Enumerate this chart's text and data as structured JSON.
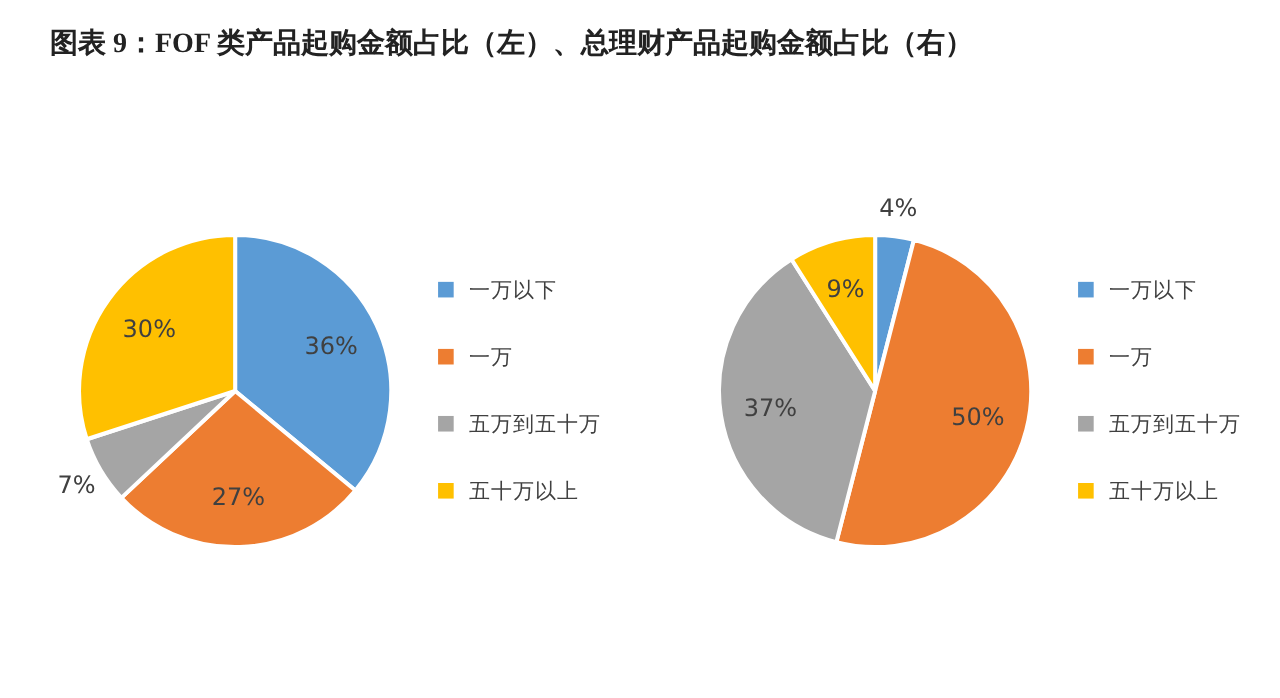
{
  "chart_data": [
    {
      "type": "pie",
      "title": "图表 9：FOF 类产品起购金额占比（左）、总理财产品起购金额占比（右）",
      "categories": [
        "一万以下",
        "一万",
        "五万到五十万",
        "五十万以上"
      ],
      "values": [
        36,
        27,
        7,
        30
      ],
      "colors": [
        "#5b9bd5",
        "#ed7d31",
        "#a5a5a5",
        "#ffc000"
      ],
      "value_labels": [
        "36%",
        "27%",
        "7%",
        "30%"
      ],
      "legend": "right"
    },
    {
      "type": "pie",
      "categories": [
        "一万以下",
        "一万",
        "五万到五十万",
        "五十万以上"
      ],
      "values": [
        4,
        50,
        37,
        9
      ],
      "colors": [
        "#5b9bd5",
        "#ed7d31",
        "#a5a5a5",
        "#ffc000"
      ],
      "value_labels": [
        "4%",
        "50%",
        "37%",
        "9%"
      ],
      "legend": "right"
    }
  ]
}
